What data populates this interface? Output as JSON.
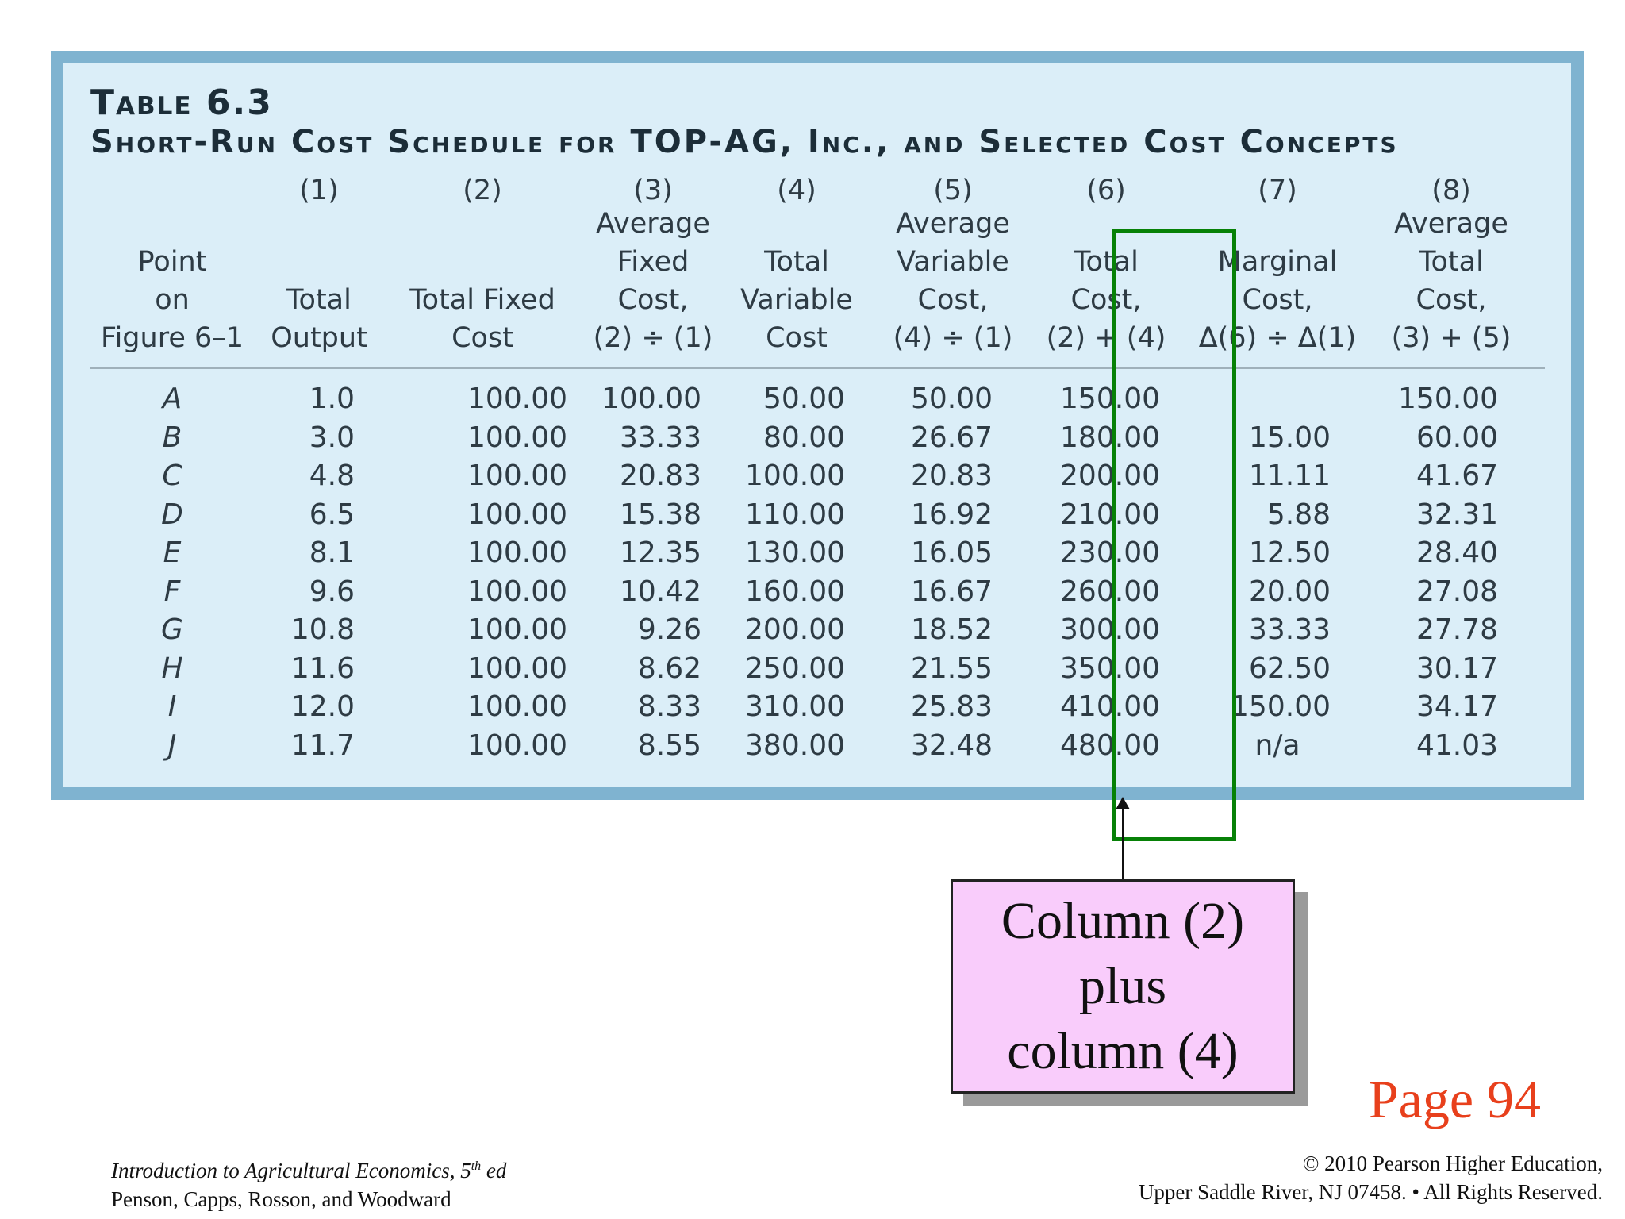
{
  "table": {
    "title": "Table 6.3",
    "subtitle": "Short-Run Cost Schedule for TOP-AG, Inc., and Selected Cost Concepts",
    "columns": [
      {
        "num": "",
        "title": "Point\non\nFigure 6–1"
      },
      {
        "num": "(1)",
        "title": "Total\nOutput"
      },
      {
        "num": "(2)",
        "title": "Total Fixed\nCost"
      },
      {
        "num": "(3)",
        "title": "Average\nFixed\nCost,\n(2) ÷ (1)"
      },
      {
        "num": "(4)",
        "title": "Total\nVariable\nCost"
      },
      {
        "num": "(5)",
        "title": "Average\nVariable\nCost,\n(4) ÷ (1)"
      },
      {
        "num": "(6)",
        "title": "Total\nCost,\n(2) + (4)"
      },
      {
        "num": "(7)",
        "title": "Marginal\nCost,\nΔ(6) ÷ Δ(1)"
      },
      {
        "num": "(8)",
        "title": "Average\nTotal\nCost,\n(3) + (5)"
      }
    ],
    "rows": [
      [
        "A",
        "1.0",
        "100.00",
        "100.00",
        "50.00",
        "50.00",
        "150.00",
        "",
        "150.00"
      ],
      [
        "B",
        "3.0",
        "100.00",
        "33.33",
        "80.00",
        "26.67",
        "180.00",
        "15.00",
        "60.00"
      ],
      [
        "C",
        "4.8",
        "100.00",
        "20.83",
        "100.00",
        "20.83",
        "200.00",
        "11.11",
        "41.67"
      ],
      [
        "D",
        "6.5",
        "100.00",
        "15.38",
        "110.00",
        "16.92",
        "210.00",
        "5.88",
        "32.31"
      ],
      [
        "E",
        "8.1",
        "100.00",
        "12.35",
        "130.00",
        "16.05",
        "230.00",
        "12.50",
        "28.40"
      ],
      [
        "F",
        "9.6",
        "100.00",
        "10.42",
        "160.00",
        "16.67",
        "260.00",
        "20.00",
        "27.08"
      ],
      [
        "G",
        "10.8",
        "100.00",
        "9.26",
        "200.00",
        "18.52",
        "300.00",
        "33.33",
        "27.78"
      ],
      [
        "H",
        "11.6",
        "100.00",
        "8.62",
        "250.00",
        "21.55",
        "350.00",
        "62.50",
        "30.17"
      ],
      [
        "I",
        "12.0",
        "100.00",
        "8.33",
        "310.00",
        "25.83",
        "410.00",
        "150.00",
        "34.17"
      ],
      [
        "J",
        "11.7",
        "100.00",
        "8.55",
        "380.00",
        "32.48",
        "480.00",
        "n/a",
        "41.03"
      ]
    ]
  },
  "callout": {
    "lines": [
      "Column (2)",
      "plus",
      "column (4)"
    ]
  },
  "page_label": "Page 94",
  "footer": {
    "left_line1": "Introduction to Agricultural Economics, 5",
    "left_sup": "th",
    "left_line1_end": " ed",
    "left_line2": "Penson, Capps, Rosson, and Woodward",
    "right_line1": "© 2010 Pearson Higher Education,",
    "right_line2": "Upper Saddle River, NJ 07458. • All Rights Reserved."
  }
}
